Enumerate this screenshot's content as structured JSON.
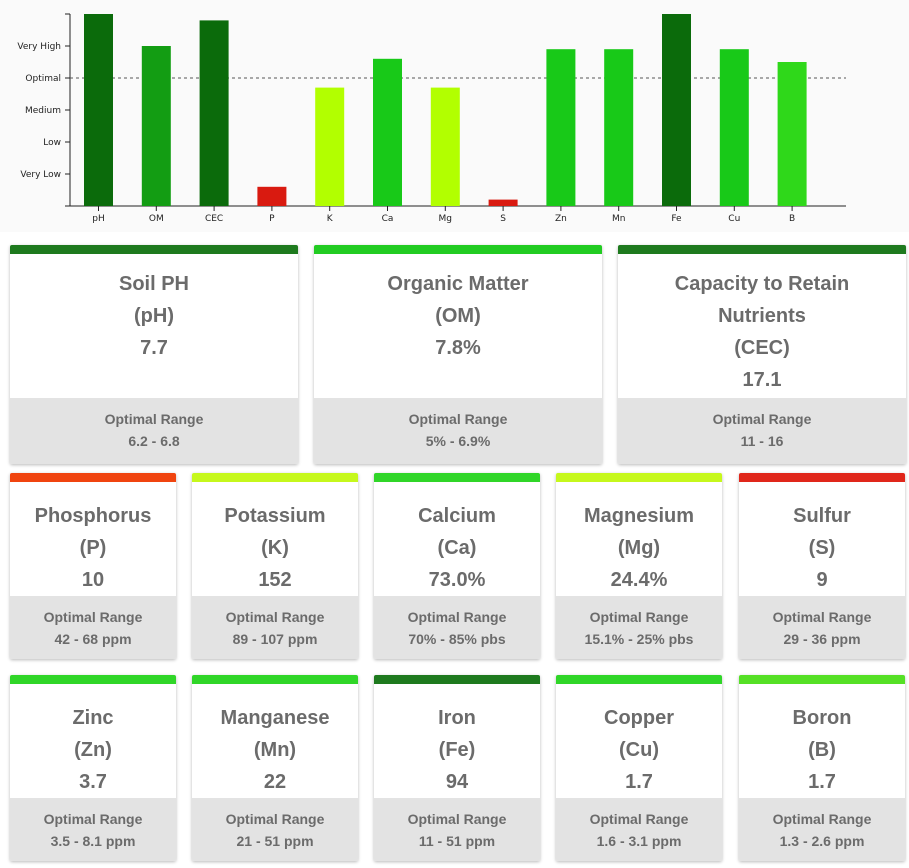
{
  "chart_data": {
    "type": "bar",
    "categories": [
      "pH",
      "OM",
      "CEC",
      "P",
      "K",
      "Ca",
      "Mg",
      "S",
      "Zn",
      "Mn",
      "Fe",
      "Cu",
      "B"
    ],
    "values": [
      6.0,
      5.0,
      5.8,
      0.6,
      3.7,
      4.6,
      3.7,
      0.2,
      4.9,
      4.9,
      6.0,
      4.9,
      4.5
    ],
    "colors": [
      "#0b6b0b",
      "#139d13",
      "#0b6b0b",
      "#d91a10",
      "#b2ff00",
      "#18c918",
      "#b2ff00",
      "#d91a10",
      "#18c918",
      "#18c918",
      "#0b6b0b",
      "#18c918",
      "#2fd81a"
    ],
    "y_tick_labels": [
      "Very Low",
      "Low",
      "Medium",
      "Optimal",
      "Very High"
    ],
    "y_tick_values": [
      1,
      2,
      3,
      4,
      5
    ],
    "ylim": [
      0,
      6
    ],
    "optimal_line": 4,
    "title": "",
    "xlabel": "",
    "ylabel": ""
  },
  "cards": [
    {
      "name": "Soil PH",
      "abbr": "(pH)",
      "value": "7.7",
      "range_label": "Optimal Range",
      "range": "6.2 - 6.8",
      "color": "#1e7a1e"
    },
    {
      "name": "Organic Matter",
      "abbr": "(OM)",
      "value": "7.8%",
      "range_label": "Optimal Range",
      "range": "5% - 6.9%",
      "color": "#22cc22"
    },
    {
      "name": "Capacity to Retain Nutrients",
      "abbr": "(CEC)",
      "value": "17.1",
      "range_label": "Optimal Range",
      "range": "11 - 16",
      "color": "#1e7a1e"
    },
    {
      "name": "Phosphorus",
      "abbr": "(P)",
      "value": "10",
      "range_label": "Optimal Range",
      "range": "42 - 68 ppm",
      "color": "#f0440f"
    },
    {
      "name": "Potassium",
      "abbr": "(K)",
      "value": "152",
      "range_label": "Optimal Range",
      "range": "89 - 107 ppm",
      "color": "#c6f81c"
    },
    {
      "name": "Calcium",
      "abbr": "(Ca)",
      "value": "73.0%",
      "range_label": "Optimal Range",
      "range": "70% - 85% pbs",
      "color": "#30d628"
    },
    {
      "name": "Magnesium",
      "abbr": "(Mg)",
      "value": "24.4%",
      "range_label": "Optimal Range",
      "range": "15.1% - 25% pbs",
      "color": "#c6f81c"
    },
    {
      "name": "Sulfur",
      "abbr": "(S)",
      "value": "9",
      "range_label": "Optimal Range",
      "range": "29 - 36 ppm",
      "color": "#e0261a"
    },
    {
      "name": "Zinc",
      "abbr": "(Zn)",
      "value": "3.7",
      "range_label": "Optimal Range",
      "range": "3.5 - 8.1 ppm",
      "color": "#30d628"
    },
    {
      "name": "Manganese",
      "abbr": "(Mn)",
      "value": "22",
      "range_label": "Optimal Range",
      "range": "21 - 51 ppm",
      "color": "#30d628"
    },
    {
      "name": "Iron",
      "abbr": "(Fe)",
      "value": "94",
      "range_label": "Optimal Range",
      "range": "11 - 51 ppm",
      "color": "#1e7a1e"
    },
    {
      "name": "Copper",
      "abbr": "(Cu)",
      "value": "1.7",
      "range_label": "Optimal Range",
      "range": "1.6 - 3.1 ppm",
      "color": "#30d628"
    },
    {
      "name": "Boron",
      "abbr": "(B)",
      "value": "1.7",
      "range_label": "Optimal Range",
      "range": "1.3 - 2.6 ppm",
      "color": "#55e025"
    }
  ]
}
